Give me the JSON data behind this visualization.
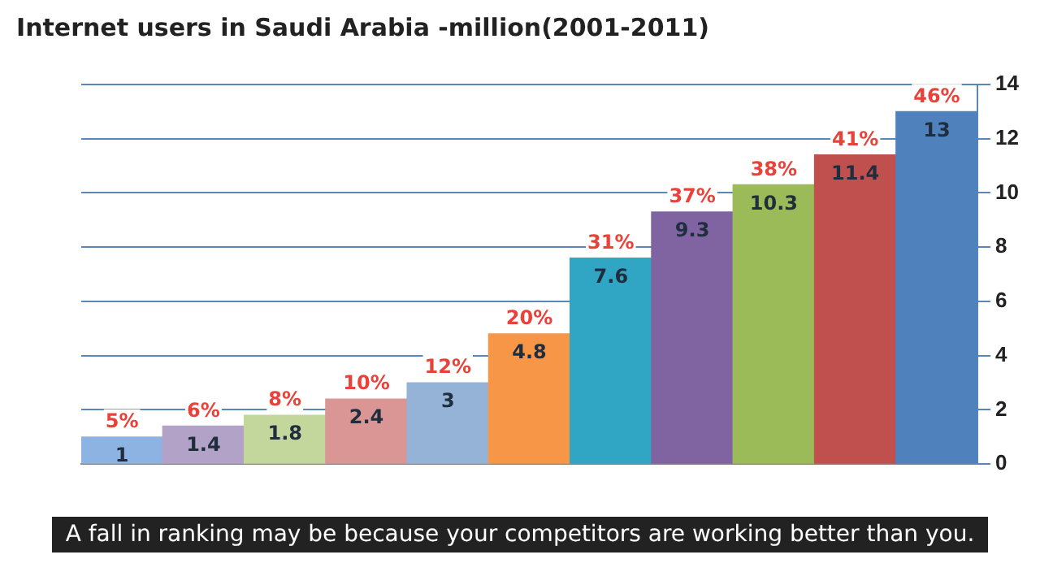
{
  "chart_data": {
    "type": "bar",
    "title": "Internet users in Saudi Arabia -million(2001-2011)",
    "categories": [
      null,
      null,
      null,
      null,
      null,
      null,
      null,
      null,
      null,
      null,
      null
    ],
    "values": [
      1,
      1.4,
      1.8,
      2.4,
      3,
      4.8,
      7.6,
      9.3,
      10.3,
      11.4,
      13
    ],
    "colors": [
      "#8db3e2",
      "#b3a2c7",
      "#c3d69b",
      "#d99694",
      "#95b3d7",
      "#f79646",
      "#31a5c4",
      "#8064a2",
      "#9bbb59",
      "#c0504d",
      "#4f81bd"
    ],
    "data_labels": true,
    "ylim": [
      0,
      14
    ],
    "yticks": [
      0,
      2,
      4,
      6,
      8,
      10,
      12,
      14
    ],
    "grid": "y",
    "legend": false,
    "annotations": [
      {
        "text": "5%",
        "y": 1
      },
      {
        "text": "6%",
        "y": 1.4
      },
      {
        "text": "8%",
        "y": 1.8
      },
      {
        "text": "10%",
        "y": 2.4
      },
      {
        "text": "12%",
        "y": 3
      },
      {
        "text": "20%",
        "y": 4.8
      },
      {
        "text": "31%",
        "y": 7.6
      },
      {
        "text": "37%",
        "y": 9.3
      },
      {
        "text": "38%",
        "y": 10.3
      },
      {
        "text": "41%",
        "y": 11.4
      },
      {
        "text": "46%",
        "y": 13
      },
      "A fall in ranking may be because your competitors are working better than you."
    ]
  }
}
